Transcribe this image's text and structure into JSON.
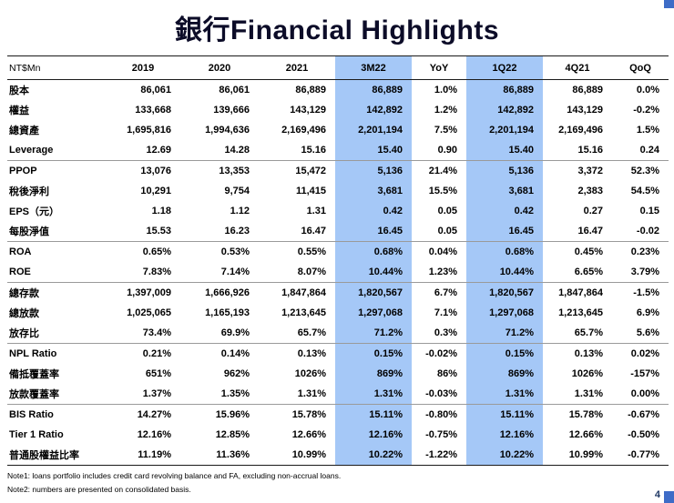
{
  "page": {
    "title": "銀行Financial Highlights",
    "page_number": "4",
    "note1": "Note1: loans portfolio includes credit card revolving balance and FA, excluding non-accrual loans.",
    "note2": "Note2: numbers are presented on consolidated basis."
  },
  "colors": {
    "highlight": "#a5c8f7",
    "accent": "#3e6cc7",
    "title_text": "#0c0c28"
  },
  "table": {
    "unit_label": "NT$Mn",
    "columns": [
      "2019",
      "2020",
      "2021",
      "3M22",
      "YoY",
      "1Q22",
      "4Q21",
      "QoQ"
    ],
    "highlight_columns": [
      3,
      5
    ],
    "rows": [
      {
        "label": "股本",
        "values": [
          "86,061",
          "86,061",
          "86,889",
          "86,889",
          "1.0%",
          "86,889",
          "86,889",
          "0.0%"
        ]
      },
      {
        "label": "權益",
        "values": [
          "133,668",
          "139,666",
          "143,129",
          "142,892",
          "1.2%",
          "142,892",
          "143,129",
          "-0.2%"
        ]
      },
      {
        "label": "總資產",
        "values": [
          "1,695,816",
          "1,994,636",
          "2,169,496",
          "2,201,194",
          "7.5%",
          "2,201,194",
          "2,169,496",
          "1.5%"
        ]
      },
      {
        "label": "Leverage",
        "values": [
          "12.69",
          "14.28",
          "15.16",
          "15.40",
          "0.90",
          "15.40",
          "15.16",
          "0.24"
        ],
        "group_end": true
      },
      {
        "label": "PPOP",
        "values": [
          "13,076",
          "13,353",
          "15,472",
          "5,136",
          "21.4%",
          "5,136",
          "3,372",
          "52.3%"
        ]
      },
      {
        "label": "稅後淨利",
        "values": [
          "10,291",
          "9,754",
          "11,415",
          "3,681",
          "15.5%",
          "3,681",
          "2,383",
          "54.5%"
        ]
      },
      {
        "label": "EPS（元）",
        "values": [
          "1.18",
          "1.12",
          "1.31",
          "0.42",
          "0.05",
          "0.42",
          "0.27",
          "0.15"
        ]
      },
      {
        "label": "每股淨值",
        "values": [
          "15.53",
          "16.23",
          "16.47",
          "16.45",
          "0.05",
          "16.45",
          "16.47",
          "-0.02"
        ],
        "group_end": true
      },
      {
        "label": "ROA",
        "values": [
          "0.65%",
          "0.53%",
          "0.55%",
          "0.68%",
          "0.04%",
          "0.68%",
          "0.45%",
          "0.23%"
        ]
      },
      {
        "label": "ROE",
        "values": [
          "7.83%",
          "7.14%",
          "8.07%",
          "10.44%",
          "1.23%",
          "10.44%",
          "6.65%",
          "3.79%"
        ],
        "group_end": true
      },
      {
        "label": "總存款",
        "values": [
          "1,397,009",
          "1,666,926",
          "1,847,864",
          "1,820,567",
          "6.7%",
          "1,820,567",
          "1,847,864",
          "-1.5%"
        ]
      },
      {
        "label": "總放款",
        "values": [
          "1,025,065",
          "1,165,193",
          "1,213,645",
          "1,297,068",
          "7.1%",
          "1,297,068",
          "1,213,645",
          "6.9%"
        ]
      },
      {
        "label": "放存比",
        "values": [
          "73.4%",
          "69.9%",
          "65.7%",
          "71.2%",
          "0.3%",
          "71.2%",
          "65.7%",
          "5.6%"
        ],
        "group_end": true
      },
      {
        "label": "NPL Ratio",
        "values": [
          "0.21%",
          "0.14%",
          "0.13%",
          "0.15%",
          "-0.02%",
          "0.15%",
          "0.13%",
          "0.02%"
        ]
      },
      {
        "label": "備抵覆蓋率",
        "values": [
          "651%",
          "962%",
          "1026%",
          "869%",
          "86%",
          "869%",
          "1026%",
          "-157%"
        ]
      },
      {
        "label": "放款覆蓋率",
        "values": [
          "1.37%",
          "1.35%",
          "1.31%",
          "1.31%",
          "-0.03%",
          "1.31%",
          "1.31%",
          "0.00%"
        ],
        "group_end": true
      },
      {
        "label": "BIS Ratio",
        "values": [
          "14.27%",
          "15.96%",
          "15.78%",
          "15.11%",
          "-0.80%",
          "15.11%",
          "15.78%",
          "-0.67%"
        ]
      },
      {
        "label": "Tier 1 Ratio",
        "values": [
          "12.16%",
          "12.85%",
          "12.66%",
          "12.16%",
          "-0.75%",
          "12.16%",
          "12.66%",
          "-0.50%"
        ]
      },
      {
        "label": "普通股權益比率",
        "values": [
          "11.19%",
          "11.36%",
          "10.99%",
          "10.22%",
          "-1.22%",
          "10.22%",
          "10.99%",
          "-0.77%"
        ]
      }
    ]
  }
}
